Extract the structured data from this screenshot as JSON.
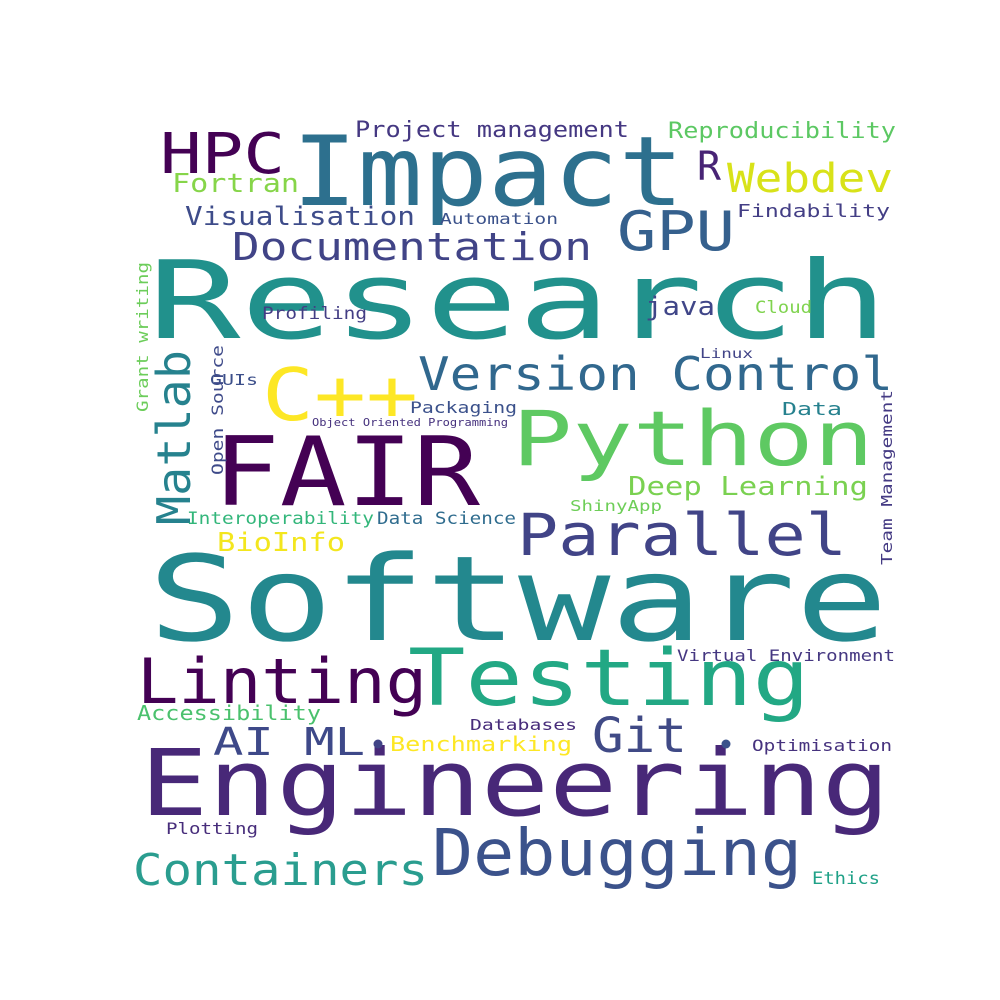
{
  "words": [
    {
      "text": "Software",
      "color": "#23888e"
    },
    {
      "text": "Research",
      "color": "#21918c"
    },
    {
      "text": "Engineering",
      "color": "#482878"
    },
    {
      "text": "Impact",
      "color": "#2d708e"
    },
    {
      "text": "Python",
      "color": "#5ec962"
    },
    {
      "text": "FAIR",
      "color": "#440154"
    },
    {
      "text": "Testing",
      "color": "#22a884"
    },
    {
      "text": "Debugging",
      "color": "#3b528b"
    },
    {
      "text": "Parallel",
      "color": "#414487"
    },
    {
      "text": "Linting",
      "color": "#440154"
    },
    {
      "text": "Containers",
      "color": "#2a9d8f"
    },
    {
      "text": "Version Control",
      "color": "#31688e"
    },
    {
      "text": "Documentation",
      "color": "#414487"
    },
    {
      "text": "C++",
      "color": "#fde725"
    },
    {
      "text": "HPC",
      "color": "#440154"
    },
    {
      "text": "GPU",
      "color": "#35608d"
    },
    {
      "text": "Matlab",
      "color": "#26828e"
    },
    {
      "text": "Git",
      "color": "#404a86"
    },
    {
      "text": "AI ML",
      "color": "#3e4989"
    },
    {
      "text": "Webdev",
      "color": "#d8e219"
    },
    {
      "text": "Deep Learning",
      "color": "#7ad151"
    },
    {
      "text": "Visualisation",
      "color": "#3e4c8a"
    },
    {
      "text": "Fortran",
      "color": "#86d549"
    },
    {
      "text": "Project management",
      "color": "#453882"
    },
    {
      "text": "Reproducibility",
      "color": "#5cc863"
    },
    {
      "text": "R",
      "color": "#482475"
    },
    {
      "text": "java",
      "color": "#404688"
    },
    {
      "text": "Accessibility",
      "color": "#4ac16d"
    },
    {
      "text": "Benchmarking",
      "color": "#fde725"
    },
    {
      "text": "BioInfo",
      "color": "#f3e61e"
    },
    {
      "text": "Virtual Environment",
      "color": "#453781"
    },
    {
      "text": "Optimisation",
      "color": "#46327e"
    },
    {
      "text": "Findability",
      "color": "#433e85"
    },
    {
      "text": "Interoperability",
      "color": "#32b67a"
    },
    {
      "text": "Data Science",
      "color": "#2f6c8e"
    },
    {
      "text": "Data",
      "color": "#26818e"
    },
    {
      "text": "Packaging",
      "color": "#3b518b"
    },
    {
      "text": "Profiling",
      "color": "#433d84"
    },
    {
      "text": "Cloud",
      "color": "#7fd34e"
    },
    {
      "text": "Automation",
      "color": "#3b528b"
    },
    {
      "text": "Plotting",
      "color": "#472d7b"
    },
    {
      "text": "Ethics",
      "color": "#1fa187"
    },
    {
      "text": "Databases",
      "color": "#472c7a"
    },
    {
      "text": "ShinyApp",
      "color": "#6ece58"
    },
    {
      "text": "GUIs",
      "color": "#3c4f8a"
    },
    {
      "text": "Linux",
      "color": "#414487"
    },
    {
      "text": "Object Oriented Programming",
      "color": "#46327e"
    },
    {
      "text": "Open Source",
      "color": "#3e4a89"
    },
    {
      "text": "Grant writing",
      "color": "#6ccd5a"
    },
    {
      "text": "Team Management",
      "color": "#443a83"
    }
  ],
  "dots": [
    {
      "name": "dot-1",
      "color": "#414487"
    },
    {
      "name": "dot-2",
      "color": "#3b528b"
    }
  ]
}
